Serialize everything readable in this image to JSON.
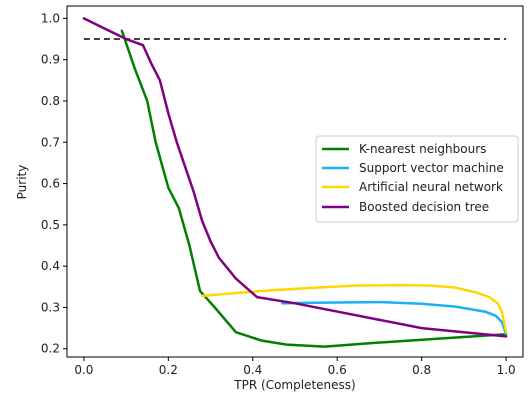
{
  "chart_data": {
    "type": "line",
    "title": "",
    "xlabel": "TPR (Completeness)",
    "ylabel": "Purity",
    "xlim": [
      -0.04,
      1.04
    ],
    "ylim": [
      0.18,
      1.03
    ],
    "grid": false,
    "legend_position": "center-right",
    "x_ticks": [
      0.0,
      0.2,
      0.4,
      0.6,
      0.8,
      1.0
    ],
    "x_tick_labels": [
      "0.0",
      "0.2",
      "0.4",
      "0.6",
      "0.8",
      "1.0"
    ],
    "y_ticks": [
      0.2,
      0.3,
      0.4,
      0.5,
      0.6,
      0.7,
      0.8,
      0.9,
      1.0
    ],
    "y_tick_labels": [
      "0.2",
      "0.3",
      "0.4",
      "0.5",
      "0.6",
      "0.7",
      "0.8",
      "0.9",
      "1.0"
    ],
    "reference_line": {
      "y": 0.95,
      "x_range": [
        0.0,
        1.0
      ],
      "color": "#000000",
      "style": "dashed"
    },
    "series": [
      {
        "name": "K-nearest neighbours",
        "color": "#008000",
        "x": [
          0.09,
          0.12,
          0.15,
          0.17,
          0.2,
          0.225,
          0.25,
          0.275,
          0.31,
          0.36,
          0.42,
          0.48,
          0.57,
          0.7,
          0.85,
          1.0
        ],
        "y": [
          0.97,
          0.88,
          0.8,
          0.7,
          0.59,
          0.54,
          0.45,
          0.34,
          0.3,
          0.24,
          0.22,
          0.21,
          0.205,
          0.215,
          0.225,
          0.235
        ]
      },
      {
        "name": "Support vector machine",
        "color": "#1ab2f0",
        "x": [
          0.47,
          0.52,
          0.6,
          0.7,
          0.8,
          0.88,
          0.95,
          0.975,
          0.99,
          1.0
        ],
        "y": [
          0.31,
          0.311,
          0.312,
          0.313,
          0.309,
          0.302,
          0.29,
          0.28,
          0.265,
          0.235
        ]
      },
      {
        "name": "Artificial neural network",
        "color": "#ffd700",
        "x": [
          0.28,
          0.35,
          0.45,
          0.55,
          0.65,
          0.75,
          0.82,
          0.88,
          0.93,
          0.96,
          0.98,
          0.99,
          1.0
        ],
        "y": [
          0.328,
          0.334,
          0.342,
          0.348,
          0.353,
          0.354,
          0.353,
          0.348,
          0.336,
          0.325,
          0.31,
          0.29,
          0.24
        ]
      },
      {
        "name": "Boosted decision tree",
        "color": "#800080",
        "x": [
          0.0,
          0.05,
          0.1,
          0.14,
          0.16,
          0.18,
          0.2,
          0.22,
          0.24,
          0.26,
          0.28,
          0.3,
          0.32,
          0.36,
          0.41,
          0.5,
          0.6,
          0.7,
          0.8,
          0.9,
          1.0
        ],
        "y": [
          1.0,
          0.975,
          0.95,
          0.935,
          0.89,
          0.85,
          0.77,
          0.7,
          0.64,
          0.58,
          0.51,
          0.46,
          0.42,
          0.37,
          0.325,
          0.31,
          0.29,
          0.27,
          0.25,
          0.24,
          0.23
        ]
      }
    ]
  }
}
